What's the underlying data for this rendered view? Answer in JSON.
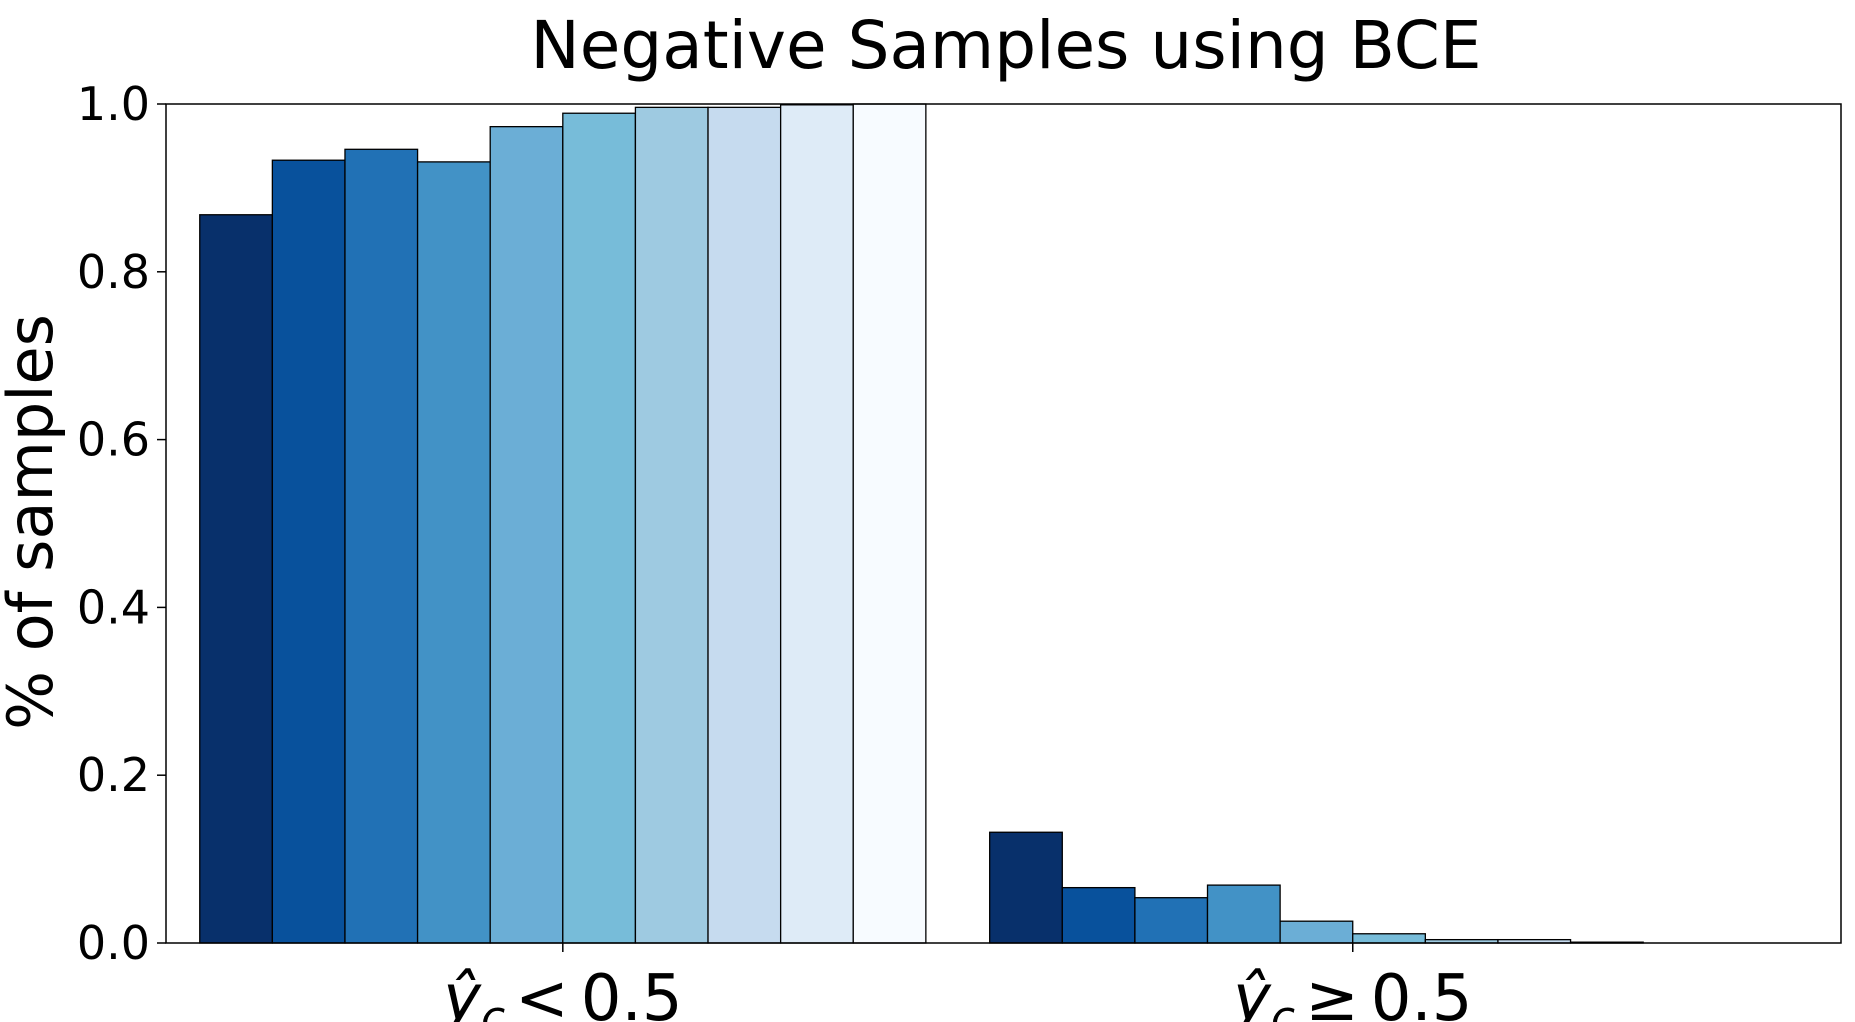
{
  "chart_data": {
    "type": "bar",
    "title": "Negative Samples using BCE",
    "ylabel": "% of samples",
    "xlabel": "",
    "ylim": [
      0,
      1.0
    ],
    "yticks": [
      "0.0",
      "0.2",
      "0.4",
      "0.6",
      "0.8",
      "1.0"
    ],
    "categories": [
      {
        "var": "ŷ",
        "sub": "c",
        "op": "<",
        "num": "0.5"
      },
      {
        "var": "ŷ",
        "sub": "c",
        "op": "≥",
        "num": "0.5"
      }
    ],
    "series": [
      {
        "color": "#08306b",
        "values": [
          0.868,
          0.132
        ]
      },
      {
        "color": "#08519c",
        "values": [
          0.933,
          0.066
        ]
      },
      {
        "color": "#2171b5",
        "values": [
          0.946,
          0.054
        ]
      },
      {
        "color": "#4292c6",
        "values": [
          0.931,
          0.069
        ]
      },
      {
        "color": "#6baed6",
        "values": [
          0.973,
          0.026
        ]
      },
      {
        "color": "#77bcd9",
        "values": [
          0.989,
          0.011
        ]
      },
      {
        "color": "#9ecae1",
        "values": [
          0.996,
          0.004
        ]
      },
      {
        "color": "#c6dbef",
        "values": [
          0.996,
          0.004
        ]
      },
      {
        "color": "#deebf7",
        "values": [
          0.999,
          0.001
        ]
      },
      {
        "color": "#f7fbff",
        "values": [
          1.0,
          0.0
        ]
      }
    ],
    "grid": false,
    "legend": "none"
  }
}
